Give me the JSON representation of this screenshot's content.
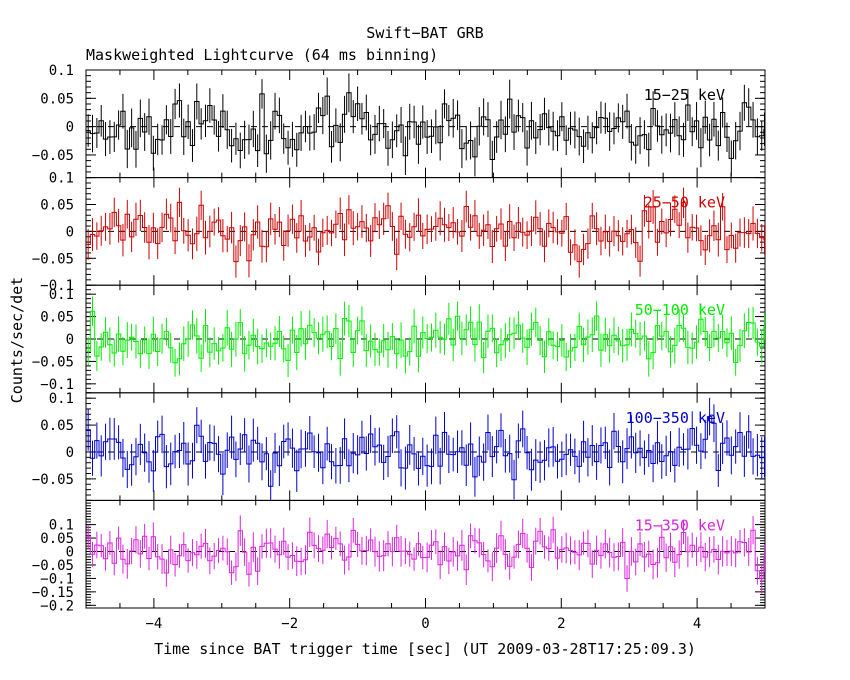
{
  "chart_data": {
    "type": "line",
    "title": "Swift−BAT GRB",
    "subtitle": "Maskweighted Lightcurve (64 ms binning)",
    "xlabel": "Time since BAT trigger time [sec] (UT 2009-03-28T17:25:09.3)",
    "ylabel": "Counts/sec/det",
    "xlim": [
      -5,
      5
    ],
    "x_ticks": [
      -4,
      -2,
      0,
      2,
      4
    ],
    "x_tick_labels": [
      "−4",
      "−2",
      "0",
      "2",
      "4"
    ],
    "bin_width": 0.064,
    "panels": [
      {
        "name": "15−25 keV",
        "color": "#000000",
        "ylim": [
          -0.09,
          0.1
        ],
        "y_ticks": [
          -0.05,
          0,
          0.05,
          0.1
        ],
        "y_tick_labels": [
          "−0.05",
          "0",
          "0.05",
          "0.1"
        ],
        "amplitude": 0.025,
        "error": 0.03,
        "seed": 11
      },
      {
        "name": "25−50 keV",
        "color": "#cc0000",
        "ylim": [
          -0.1,
          0.1
        ],
        "y_ticks": [
          -0.1,
          -0.05,
          0,
          0.05,
          0.1
        ],
        "y_tick_labels": [
          "−0.1",
          "−0.05",
          "0",
          "0.05",
          "0.1"
        ],
        "amplitude": 0.022,
        "error": 0.028,
        "seed": 23
      },
      {
        "name": "50−100 keV",
        "color": "#00ee00",
        "ylim": [
          -0.12,
          0.12
        ],
        "y_ticks": [
          -0.1,
          -0.05,
          0,
          0.05,
          0.1
        ],
        "y_tick_labels": [
          "−0.1",
          "−0.05",
          "0",
          "0.05",
          "0.1"
        ],
        "amplitude": 0.025,
        "error": 0.035,
        "seed": 37
      },
      {
        "name": "100−350 keV",
        "color": "#0000cc",
        "ylim": [
          -0.09,
          0.11
        ],
        "y_ticks": [
          -0.05,
          0,
          0.05,
          0.1
        ],
        "y_tick_labels": [
          "−0.05",
          "0",
          "0.05",
          "0.1"
        ],
        "amplitude": 0.025,
        "error": 0.035,
        "seed": 41
      },
      {
        "name": "15−350 keV",
        "color": "#dd22dd",
        "ylim": [
          -0.21,
          0.19
        ],
        "y_ticks": [
          -0.2,
          -0.15,
          -0.1,
          -0.05,
          0,
          0.05,
          0.1
        ],
        "y_tick_labels": [
          "−0.2",
          "−0.15",
          "−0.1",
          "−0.05",
          "0",
          "0.05",
          "0.1"
        ],
        "amplitude": 0.04,
        "error": 0.05,
        "seed": 53
      }
    ]
  }
}
